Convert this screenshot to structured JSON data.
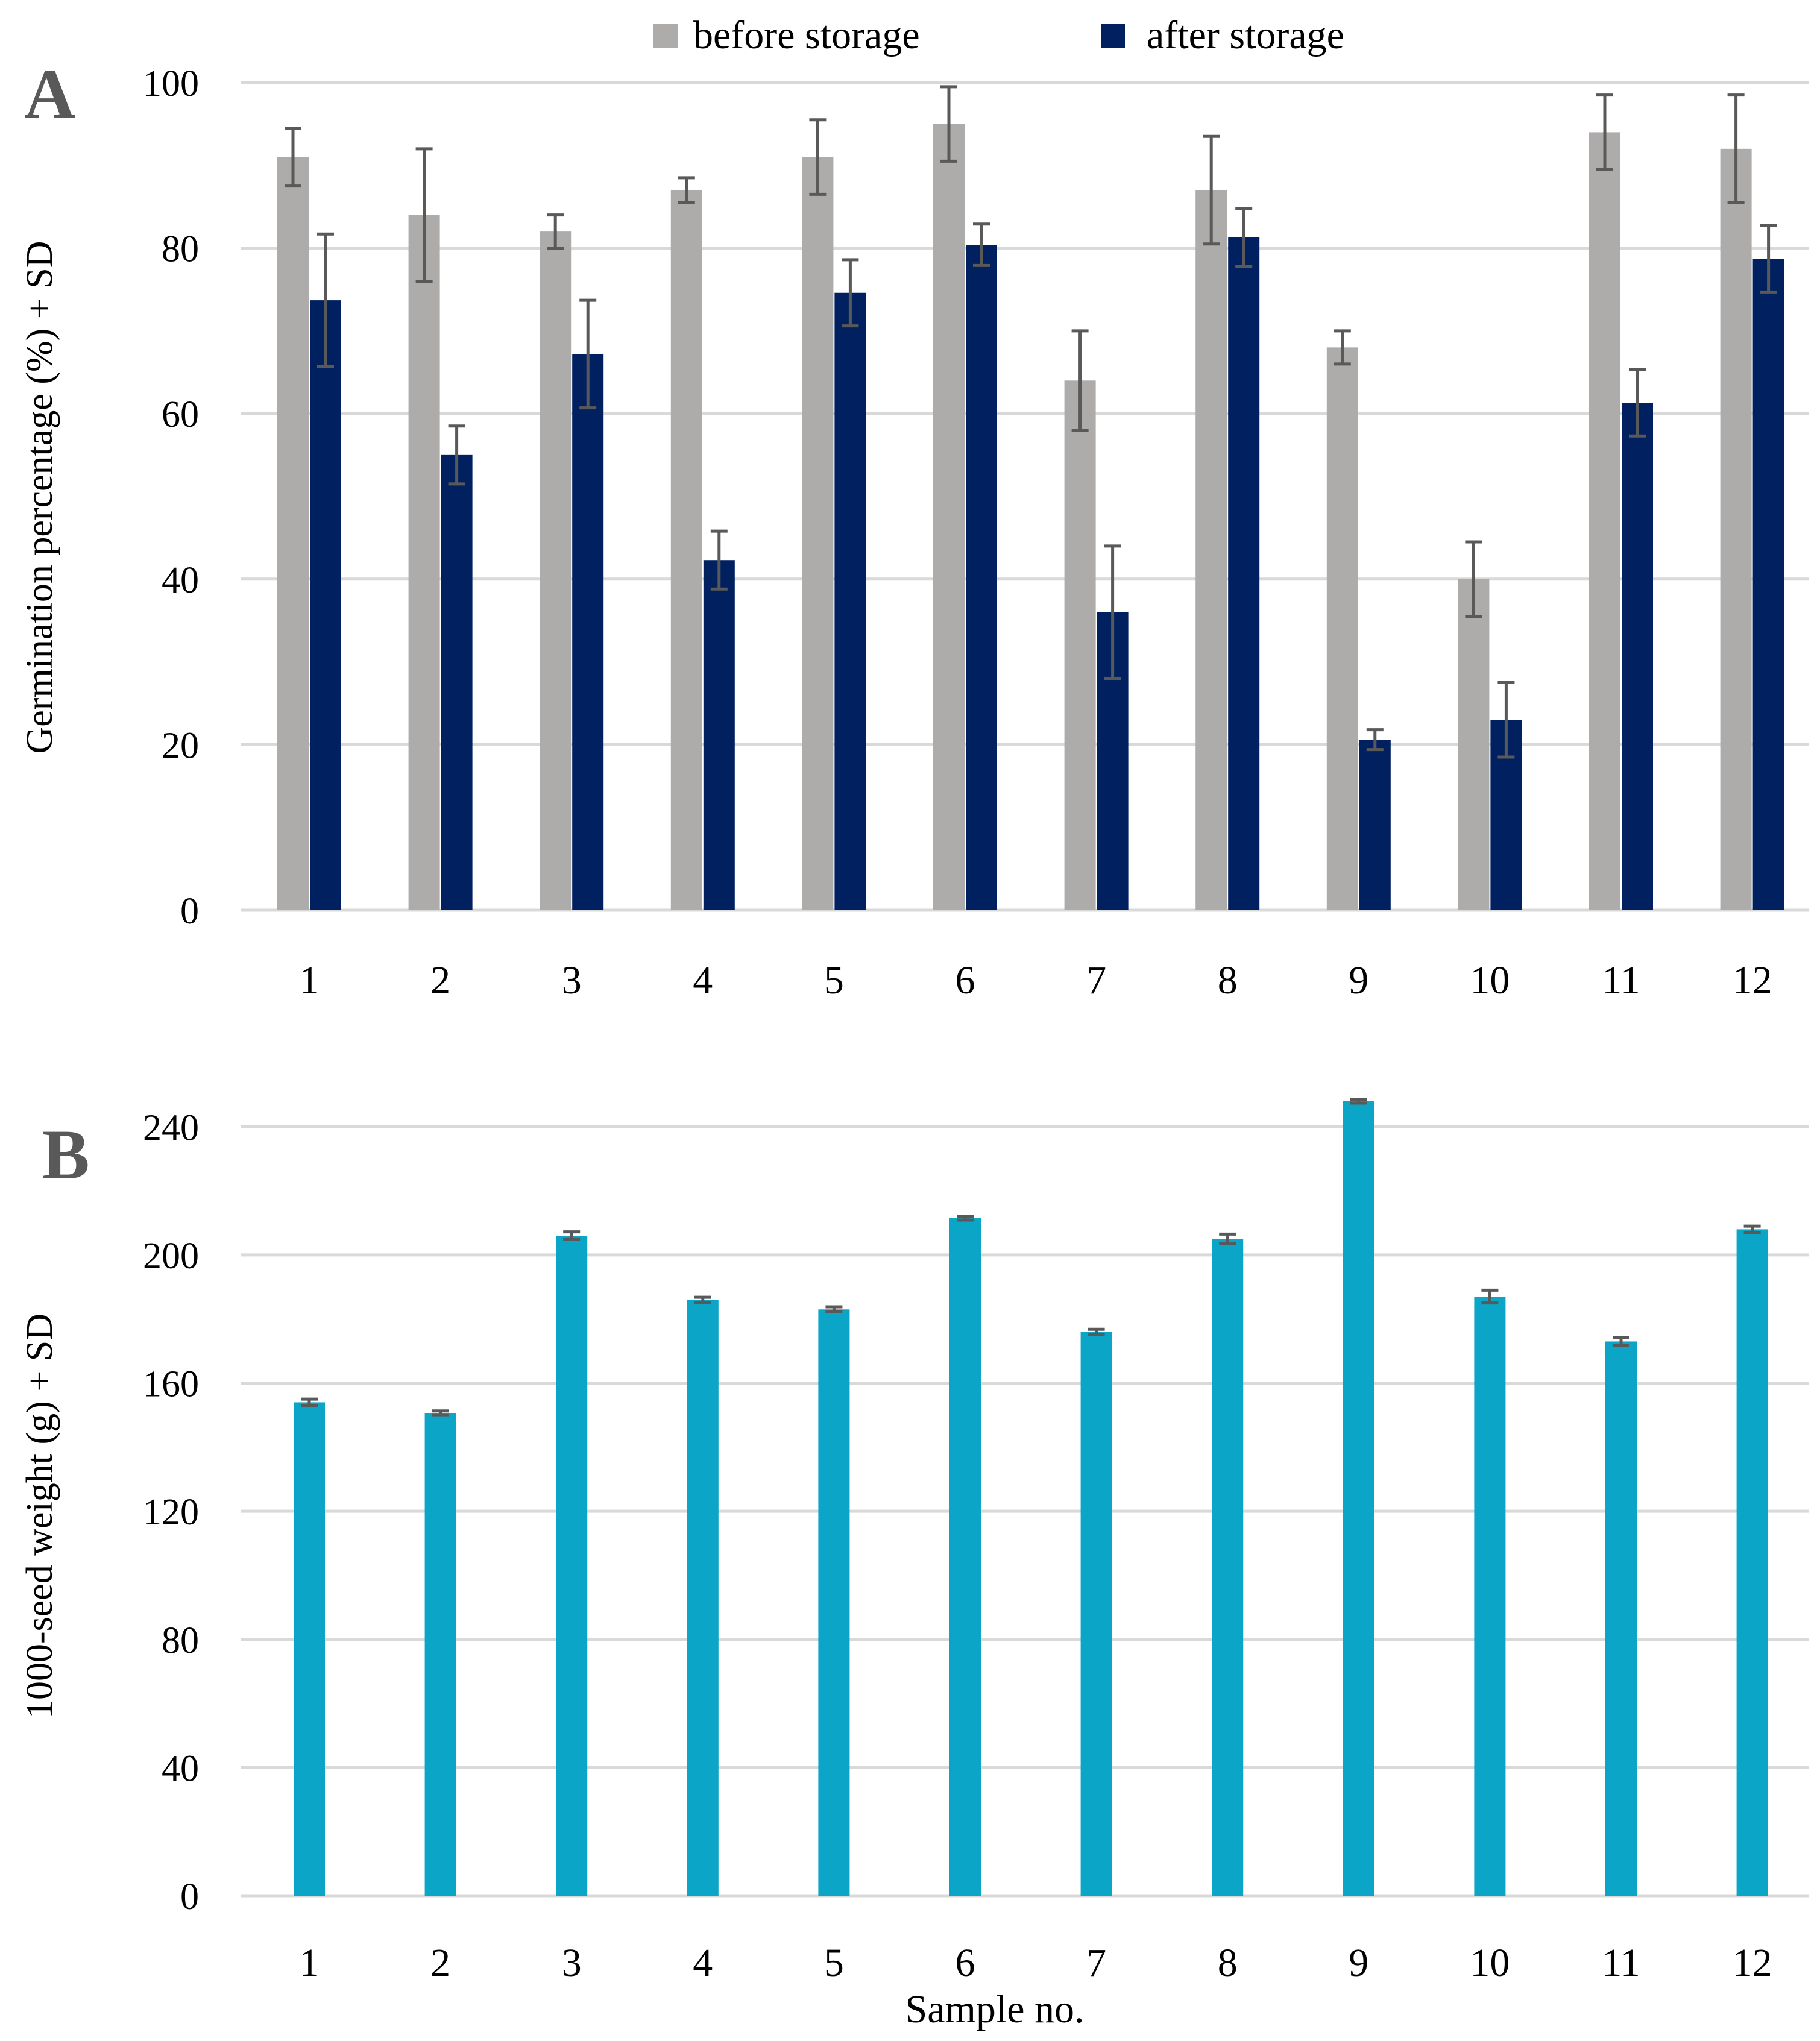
{
  "figure": {
    "xlabel": "Sample no.",
    "colors": {
      "before": "#AEABAB",
      "after": "#002060",
      "weight": "#0BA5C7",
      "error_bar": "#595959",
      "grid": "#D9D9D9",
      "text": "#000000",
      "panel_label": "#595959"
    }
  },
  "chart_data": [
    {
      "panel_label": "A",
      "type": "bar",
      "title": "",
      "xlabel": "",
      "ylabel": "Germination percentage (%) + SD",
      "ylim": [
        0,
        100
      ],
      "yticks": [
        0,
        20,
        40,
        60,
        80,
        100
      ],
      "grid": true,
      "legend": "top-center",
      "categories": [
        "1",
        "2",
        "3",
        "4",
        "5",
        "6",
        "7",
        "8",
        "9",
        "10",
        "11",
        "12"
      ],
      "series": [
        {
          "name": "before storage",
          "values": [
            91,
            84,
            82,
            87,
            91,
            95,
            64,
            87,
            68,
            40,
            94,
            92
          ],
          "sd": [
            3.5,
            8,
            2,
            1.5,
            4.5,
            4.5,
            6,
            6.5,
            2,
            4.5,
            4.5,
            6.5
          ]
        },
        {
          "name": "after storage",
          "values": [
            73.7,
            55,
            67.2,
            42.3,
            74.6,
            80.4,
            36,
            81.3,
            20.6,
            23,
            61.3,
            78.7
          ],
          "sd": [
            8,
            3.5,
            6.5,
            3.5,
            4,
            2.5,
            8,
            3.5,
            1.2,
            4.5,
            4,
            4
          ]
        }
      ]
    },
    {
      "panel_label": "B",
      "type": "bar",
      "title": "",
      "xlabel": "Sample no.",
      "ylabel": "1000-seed weight (g) + SD",
      "ylim": [
        0,
        260
      ],
      "yticks": [
        0,
        40,
        80,
        120,
        160,
        200,
        240
      ],
      "grid": true,
      "legend": "none",
      "categories": [
        "1",
        "2",
        "3",
        "4",
        "5",
        "6",
        "7",
        "8",
        "9",
        "10",
        "11",
        "12"
      ],
      "series": [
        {
          "name": "1000-seed weight",
          "values": [
            154,
            150.7,
            206,
            186,
            183,
            211.5,
            176,
            205,
            248,
            187,
            173,
            208
          ],
          "sd": [
            1,
            0.6,
            1.2,
            0.8,
            0.8,
            0.6,
            0.8,
            1.5,
            0.6,
            2,
            1.2,
            1
          ]
        }
      ]
    }
  ]
}
